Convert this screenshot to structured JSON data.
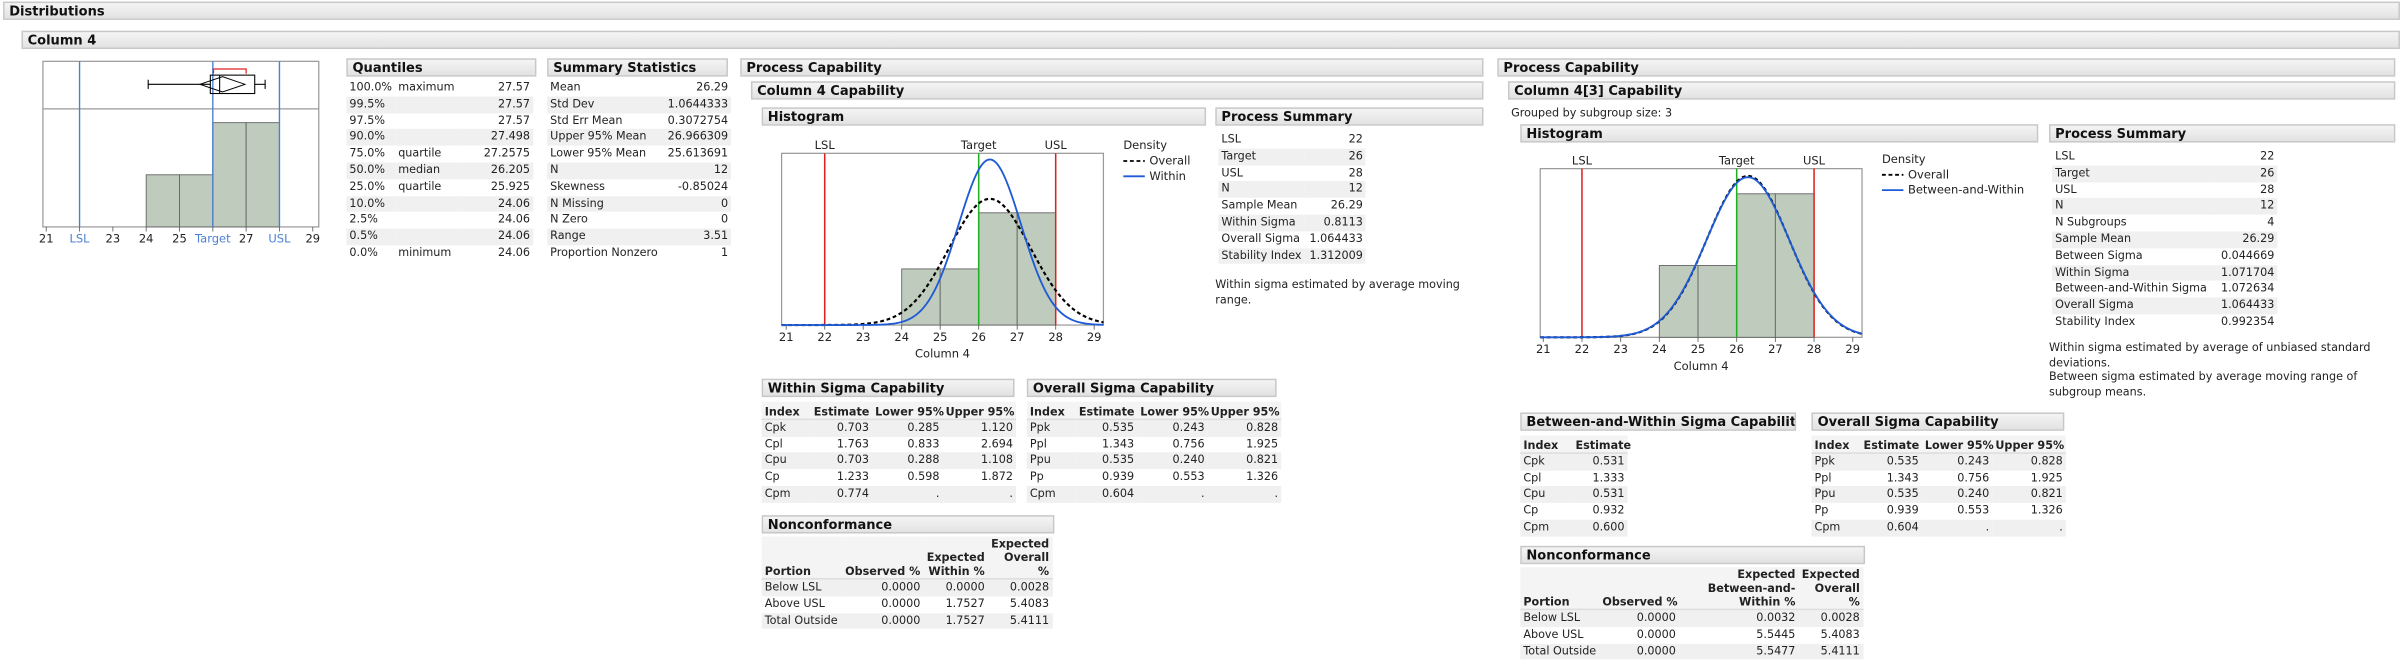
{
  "header": {
    "title": "Distributions",
    "column": "Column 4"
  },
  "distribution": {
    "xlim": [
      20.9,
      29.18
    ],
    "xticks": [
      21,
      {
        "value": 22,
        "label": "LSL"
      },
      23,
      24,
      25,
      {
        "value": 26,
        "label": "Target"
      },
      27,
      {
        "value": 28,
        "label": "USL"
      },
      29
    ],
    "reference_lines": [
      22,
      26,
      28
    ],
    "reference_color": "#4a7fd4",
    "bins": [
      24,
      25,
      26,
      27,
      28
    ],
    "counts": [
      2,
      2,
      4,
      4
    ],
    "bar_color": "#bfccbd",
    "box": {
      "min": 24.06,
      "q1": 25.925,
      "median": 26.205,
      "q3": 27.2575,
      "max": 27.57,
      "mean": 26.29,
      "mean_ci": [
        25.613691,
        26.966309
      ],
      "shortest_half": [
        26.02,
        27.0
      ]
    }
  },
  "quantiles": {
    "title": "Quantiles",
    "rows": [
      {
        "pct": "100.0%",
        "label": "maximum",
        "value": 27.57
      },
      {
        "pct": "99.5%",
        "value": 27.57
      },
      {
        "pct": "97.5%",
        "value": 27.57
      },
      {
        "pct": "90.0%",
        "value": 27.498
      },
      {
        "pct": "75.0%",
        "label": "quartile",
        "value": 27.2575
      },
      {
        "pct": "50.0%",
        "label": "median",
        "value": 26.205
      },
      {
        "pct": "25.0%",
        "label": "quartile",
        "value": 25.925
      },
      {
        "pct": "10.0%",
        "value": 24.06
      },
      {
        "pct": "2.5%",
        "value": 24.06
      },
      {
        "pct": "0.5%",
        "value": 24.06
      },
      {
        "pct": "0.0%",
        "label": "minimum",
        "value": 24.06
      }
    ]
  },
  "summary_statistics": {
    "title": "Summary Statistics",
    "rows": [
      [
        "Mean",
        26.29
      ],
      [
        "Std Dev",
        1.0644333
      ],
      [
        "Std Err Mean",
        0.3072754
      ],
      [
        "Upper 95% Mean",
        26.966309
      ],
      [
        "Lower 95% Mean",
        25.613691
      ],
      [
        "N",
        12
      ],
      [
        "Skewness",
        -0.85024
      ],
      [
        "N Missing",
        0
      ],
      [
        "N Zero",
        0
      ],
      [
        "Range",
        3.51
      ],
      [
        "Proportion Nonzero",
        1
      ]
    ]
  },
  "capability_left": {
    "title": "Process Capability",
    "subtitle": "Column 4 Capability",
    "histogram": {
      "title": "Histogram",
      "xlim": [
        20.88,
        29.24
      ],
      "xticks": [
        21,
        22,
        23,
        24,
        25,
        26,
        27,
        28,
        29
      ],
      "x_label": "Column 4",
      "bins": [
        24,
        25,
        26,
        27,
        28
      ],
      "counts": [
        2,
        2,
        4,
        4
      ],
      "bar_color": "#bfccbd",
      "spec_lines": [
        {
          "value": 22,
          "label": "LSL",
          "color": "#e02020"
        },
        {
          "value": 26,
          "label": "Target",
          "color": "#20b020"
        },
        {
          "value": 28,
          "label": "USL",
          "color": "#e02020"
        }
      ],
      "legend_title": "Density",
      "curves": [
        {
          "name": "Overall",
          "color": "#000000",
          "dashed": true,
          "mean": 26.29,
          "sigma": 1.064433
        },
        {
          "name": "Within",
          "color": "#1f5bd6",
          "dashed": false,
          "mean": 26.29,
          "sigma": 0.8113
        }
      ]
    },
    "process_summary": {
      "title": "Process Summary",
      "rows": [
        [
          "LSL",
          22
        ],
        [
          "Target",
          26
        ],
        [
          "USL",
          28
        ],
        [
          "N",
          12
        ],
        [
          "Sample Mean",
          26.29
        ],
        [
          "Within Sigma",
          0.8113
        ],
        [
          "Overall Sigma",
          1.064433
        ],
        [
          "Stability Index",
          1.312009
        ]
      ],
      "notes": [
        "Within sigma estimated by average moving range."
      ]
    },
    "sigma_capability": {
      "title": "Within Sigma Capability",
      "columns": [
        "Index",
        "Estimate",
        "Lower 95%",
        "Upper 95%"
      ],
      "rows": [
        [
          "Cpk",
          "0.703",
          "0.285",
          "1.120"
        ],
        [
          "Cpl",
          "1.763",
          "0.833",
          "2.694"
        ],
        [
          "Cpu",
          "0.703",
          "0.288",
          "1.108"
        ],
        [
          "Cp",
          "1.233",
          "0.598",
          "1.872"
        ],
        [
          "Cpm",
          "0.774",
          ".",
          "."
        ]
      ]
    },
    "overall_capability": {
      "title": "Overall Sigma Capability",
      "columns": [
        "Index",
        "Estimate",
        "Lower 95%",
        "Upper 95%"
      ],
      "rows": [
        [
          "Ppk",
          "0.535",
          "0.243",
          "0.828"
        ],
        [
          "Ppl",
          "1.343",
          "0.756",
          "1.925"
        ],
        [
          "Ppu",
          "0.535",
          "0.240",
          "0.821"
        ],
        [
          "Pp",
          "0.939",
          "0.553",
          "1.326"
        ],
        [
          "Cpm",
          "0.604",
          ".",
          "."
        ]
      ]
    },
    "nonconformance": {
      "title": "Nonconformance",
      "columns": [
        "Portion",
        "Observed %",
        "Expected Within %",
        "Expected Overall %"
      ],
      "rows": [
        [
          "Below LSL",
          "0.0000",
          "0.0000",
          "0.0028"
        ],
        [
          "Above USL",
          "0.0000",
          "1.7527",
          "5.4083"
        ],
        [
          "Total Outside",
          "0.0000",
          "1.7527",
          "5.4111"
        ]
      ]
    }
  },
  "capability_right": {
    "title": "Process Capability",
    "subtitle": "Column 4[3] Capability",
    "grouped_note": "Grouped by subgroup size: 3",
    "histogram": {
      "title": "Histogram",
      "xlim": [
        20.92,
        29.24
      ],
      "xticks": [
        21,
        22,
        23,
        24,
        25,
        26,
        27,
        28,
        29
      ],
      "x_label": "Column 4",
      "bins": [
        24,
        25,
        26,
        27,
        28
      ],
      "counts": [
        2,
        2,
        4,
        4
      ],
      "bar_color": "#bfccbd",
      "spec_lines": [
        {
          "value": 22,
          "label": "LSL",
          "color": "#e02020"
        },
        {
          "value": 26,
          "label": "Target",
          "color": "#20b020"
        },
        {
          "value": 28,
          "label": "USL",
          "color": "#e02020"
        }
      ],
      "legend_title": "Density",
      "curves": [
        {
          "name": "Overall",
          "color": "#000000",
          "dashed": true,
          "mean": 26.29,
          "sigma": 1.064433
        },
        {
          "name": "Between-and-Within",
          "color": "#1f5bd6",
          "dashed": false,
          "mean": 26.29,
          "sigma": 1.072634
        }
      ]
    },
    "process_summary": {
      "title": "Process Summary",
      "rows": [
        [
          "LSL",
          22
        ],
        [
          "Target",
          26
        ],
        [
          "USL",
          28
        ],
        [
          "N",
          12
        ],
        [
          "N Subgroups",
          4
        ],
        [
          "Sample Mean",
          26.29
        ],
        [
          "Between Sigma",
          0.044669
        ],
        [
          "Within Sigma",
          1.071704
        ],
        [
          "Between-and-Within Sigma",
          1.072634
        ],
        [
          "Overall Sigma",
          1.064433
        ],
        [
          "Stability Index",
          0.992354
        ]
      ],
      "notes": [
        "Within sigma estimated by average of unbiased standard deviations.",
        "Between sigma estimated by average moving range of subgroup means."
      ]
    },
    "sigma_capability": {
      "title": "Between-and-Within Sigma Capability",
      "columns": [
        "Index",
        "Estimate"
      ],
      "rows": [
        [
          "Cpk",
          "0.531"
        ],
        [
          "Cpl",
          "1.333"
        ],
        [
          "Cpu",
          "0.531"
        ],
        [
          "Cp",
          "0.932"
        ],
        [
          "Cpm",
          "0.600"
        ]
      ]
    },
    "overall_capability": {
      "title": "Overall Sigma Capability",
      "columns": [
        "Index",
        "Estimate",
        "Lower 95%",
        "Upper 95%"
      ],
      "rows": [
        [
          "Ppk",
          "0.535",
          "0.243",
          "0.828"
        ],
        [
          "Ppl",
          "1.343",
          "0.756",
          "1.925"
        ],
        [
          "Ppu",
          "0.535",
          "0.240",
          "0.821"
        ],
        [
          "Pp",
          "0.939",
          "0.553",
          "1.326"
        ],
        [
          "Cpm",
          "0.604",
          ".",
          "."
        ]
      ]
    },
    "nonconformance": {
      "title": "Nonconformance",
      "columns": [
        "Portion",
        "Observed %",
        "Expected Between-and-Within %",
        "Expected Overall %"
      ],
      "rows": [
        [
          "Below LSL",
          "0.0000",
          "0.0032",
          "0.0028"
        ],
        [
          "Above USL",
          "0.0000",
          "5.5445",
          "5.4083"
        ],
        [
          "Total Outside",
          "0.0000",
          "5.5477",
          "5.4111"
        ]
      ]
    }
  }
}
